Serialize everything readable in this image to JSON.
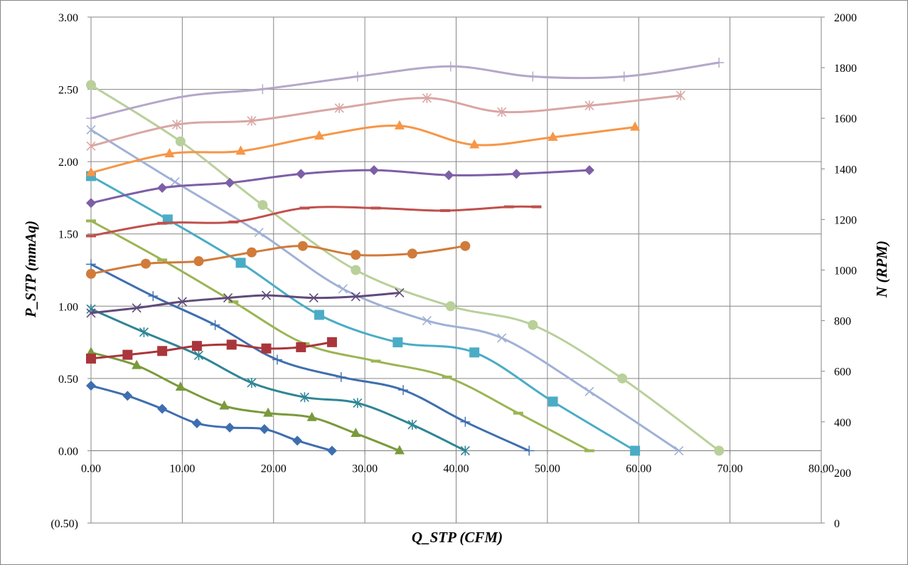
{
  "chart_data": {
    "type": "line",
    "title": "",
    "xlabel": "Q_STP (CFM)",
    "ylabel": "P_STP (mmAq)",
    "y2label": "N (RPM)",
    "xlim": [
      0,
      80
    ],
    "ylim": [
      -0.5,
      3.0
    ],
    "y2lim": [
      0,
      2000
    ],
    "grid": true,
    "legend": "none",
    "x_ticks": [
      "0.00",
      "10.00",
      "20.00",
      "30.00",
      "40.00",
      "50.00",
      "60.00",
      "70.00",
      "80.00"
    ],
    "y_ticks": [
      {
        "label": "(0.50)",
        "value": -0.5,
        "color": "#ff0000"
      },
      {
        "label": "0.00",
        "value": 0.0,
        "color": "#000000"
      },
      {
        "label": "0.50",
        "value": 0.5,
        "color": "#000000"
      },
      {
        "label": "1.00",
        "value": 1.0,
        "color": "#000000"
      },
      {
        "label": "1.50",
        "value": 1.5,
        "color": "#000000"
      },
      {
        "label": "2.00",
        "value": 2.0,
        "color": "#000000"
      },
      {
        "label": "2.50",
        "value": 2.5,
        "color": "#000000"
      },
      {
        "label": "3.00",
        "value": 3.0,
        "color": "#000000"
      }
    ],
    "y2_ticks": [
      "0",
      "200",
      "400",
      "600",
      "800",
      "1000",
      "1200",
      "1400",
      "1600",
      "1800",
      "2000"
    ],
    "series": [
      {
        "axis": "left",
        "color": "#3f6eb0",
        "marker": "diamond",
        "points": [
          [
            0.0,
            0.45
          ],
          [
            4.0,
            0.38
          ],
          [
            7.8,
            0.29
          ],
          [
            11.6,
            0.19
          ],
          [
            15.2,
            0.16
          ],
          [
            19.0,
            0.15
          ],
          [
            22.6,
            0.07
          ],
          [
            26.4,
            0.0
          ]
        ]
      },
      {
        "axis": "left",
        "color": "#7a9a3b",
        "marker": "triangle",
        "points": [
          [
            0.0,
            0.68
          ],
          [
            5.0,
            0.59
          ],
          [
            9.8,
            0.44
          ],
          [
            14.6,
            0.31
          ],
          [
            19.4,
            0.26
          ],
          [
            24.2,
            0.23
          ],
          [
            29.0,
            0.12
          ],
          [
            33.8,
            0.0
          ]
        ]
      },
      {
        "axis": "left",
        "color": "#2f8596",
        "marker": "star",
        "points": [
          [
            0.0,
            0.98
          ],
          [
            5.8,
            0.82
          ],
          [
            11.8,
            0.66
          ],
          [
            17.6,
            0.47
          ],
          [
            23.4,
            0.37
          ],
          [
            29.2,
            0.33
          ],
          [
            35.2,
            0.18
          ],
          [
            41.0,
            0.0
          ]
        ]
      },
      {
        "axis": "left",
        "color": "#3f6eb0",
        "marker": "plus",
        "points": [
          [
            0.0,
            1.29
          ],
          [
            6.8,
            1.07
          ],
          [
            13.6,
            0.87
          ],
          [
            20.4,
            0.63
          ],
          [
            27.4,
            0.51
          ],
          [
            34.2,
            0.42
          ],
          [
            41.0,
            0.2
          ],
          [
            48.0,
            0.0
          ]
        ]
      },
      {
        "axis": "left",
        "color": "#9bb554",
        "marker": "dash",
        "points": [
          [
            0.0,
            1.59
          ],
          [
            7.8,
            1.32
          ],
          [
            15.6,
            1.03
          ],
          [
            23.4,
            0.74
          ],
          [
            31.2,
            0.62
          ],
          [
            39.0,
            0.51
          ],
          [
            46.8,
            0.26
          ],
          [
            54.6,
            0.0
          ]
        ]
      },
      {
        "axis": "left",
        "color": "#4bacc6",
        "marker": "square",
        "points": [
          [
            0.0,
            1.9
          ],
          [
            8.4,
            1.6
          ],
          [
            16.4,
            1.3
          ],
          [
            25.0,
            0.94
          ],
          [
            33.6,
            0.75
          ],
          [
            42.0,
            0.68
          ],
          [
            50.6,
            0.34
          ],
          [
            59.6,
            0.0
          ]
        ]
      },
      {
        "axis": "left",
        "color": "#a0b1d6",
        "marker": "cross",
        "points": [
          [
            0.0,
            2.22
          ],
          [
            9.2,
            1.86
          ],
          [
            18.4,
            1.51
          ],
          [
            27.6,
            1.12
          ],
          [
            36.8,
            0.9
          ],
          [
            45.0,
            0.78
          ],
          [
            54.6,
            0.41
          ],
          [
            64.4,
            0.0
          ]
        ]
      },
      {
        "axis": "left",
        "color": "#b9d09a",
        "marker": "circle",
        "points": [
          [
            0.0,
            2.53
          ],
          [
            9.8,
            2.14
          ],
          [
            18.8,
            1.7
          ],
          [
            29.0,
            1.25
          ],
          [
            39.4,
            1.0
          ],
          [
            48.4,
            0.87
          ],
          [
            58.2,
            0.5
          ],
          [
            68.8,
            0.0
          ]
        ]
      },
      {
        "axis": "right",
        "color": "#a9363a",
        "marker": "square",
        "points": [
          [
            0.0,
            650
          ],
          [
            4.0,
            665
          ],
          [
            7.8,
            680
          ],
          [
            11.6,
            700
          ],
          [
            15.4,
            705
          ],
          [
            19.2,
            690
          ],
          [
            23.0,
            695
          ],
          [
            26.4,
            715
          ]
        ]
      },
      {
        "axis": "right",
        "color": "#604a7b",
        "marker": "cross",
        "points": [
          [
            0.0,
            830
          ],
          [
            5.0,
            850
          ],
          [
            10.0,
            875
          ],
          [
            15.0,
            890
          ],
          [
            19.2,
            900
          ],
          [
            24.4,
            890
          ],
          [
            29.0,
            895
          ],
          [
            33.8,
            910
          ]
        ]
      },
      {
        "axis": "right",
        "color": "#d07b3a",
        "marker": "circle",
        "points": [
          [
            0.0,
            985
          ],
          [
            6.0,
            1025
          ],
          [
            11.8,
            1035
          ],
          [
            17.6,
            1070
          ],
          [
            23.2,
            1095
          ],
          [
            29.0,
            1060
          ],
          [
            35.2,
            1065
          ],
          [
            41.0,
            1095
          ]
        ]
      },
      {
        "axis": "right",
        "color": "#c0504d",
        "marker": "dash",
        "points": [
          [
            0.0,
            1135
          ],
          [
            7.8,
            1185
          ],
          [
            15.6,
            1190
          ],
          [
            23.4,
            1245
          ],
          [
            31.2,
            1245
          ],
          [
            38.8,
            1235
          ],
          [
            45.8,
            1250
          ],
          [
            48.8,
            1250
          ]
        ]
      },
      {
        "axis": "right",
        "color": "#7d5fa6",
        "marker": "diamond",
        "points": [
          [
            0.0,
            1265
          ],
          [
            7.8,
            1325
          ],
          [
            15.2,
            1345
          ],
          [
            23.0,
            1380
          ],
          [
            31.0,
            1395
          ],
          [
            39.2,
            1375
          ],
          [
            46.6,
            1380
          ],
          [
            54.6,
            1395
          ]
        ]
      },
      {
        "axis": "right",
        "color": "#f79646",
        "marker": "triangle",
        "points": [
          [
            0.0,
            1385
          ],
          [
            8.6,
            1460
          ],
          [
            16.4,
            1470
          ],
          [
            25.0,
            1530
          ],
          [
            33.8,
            1570
          ],
          [
            42.0,
            1495
          ],
          [
            50.6,
            1525
          ],
          [
            59.6,
            1565
          ]
        ]
      },
      {
        "axis": "right",
        "color": "#d9a6a4",
        "marker": "star",
        "points": [
          [
            0.0,
            1490
          ],
          [
            9.4,
            1575
          ],
          [
            17.6,
            1590
          ],
          [
            27.2,
            1640
          ],
          [
            36.8,
            1680
          ],
          [
            45.0,
            1625
          ],
          [
            54.6,
            1650
          ],
          [
            64.6,
            1690
          ]
        ]
      },
      {
        "axis": "right",
        "color": "#b4a7c9",
        "marker": "plus",
        "points": [
          [
            0.0,
            1600
          ],
          [
            10.0,
            1685
          ],
          [
            18.8,
            1715
          ],
          [
            29.2,
            1765
          ],
          [
            39.4,
            1805
          ],
          [
            48.4,
            1765
          ],
          [
            58.4,
            1765
          ],
          [
            68.8,
            1820
          ]
        ]
      }
    ]
  }
}
